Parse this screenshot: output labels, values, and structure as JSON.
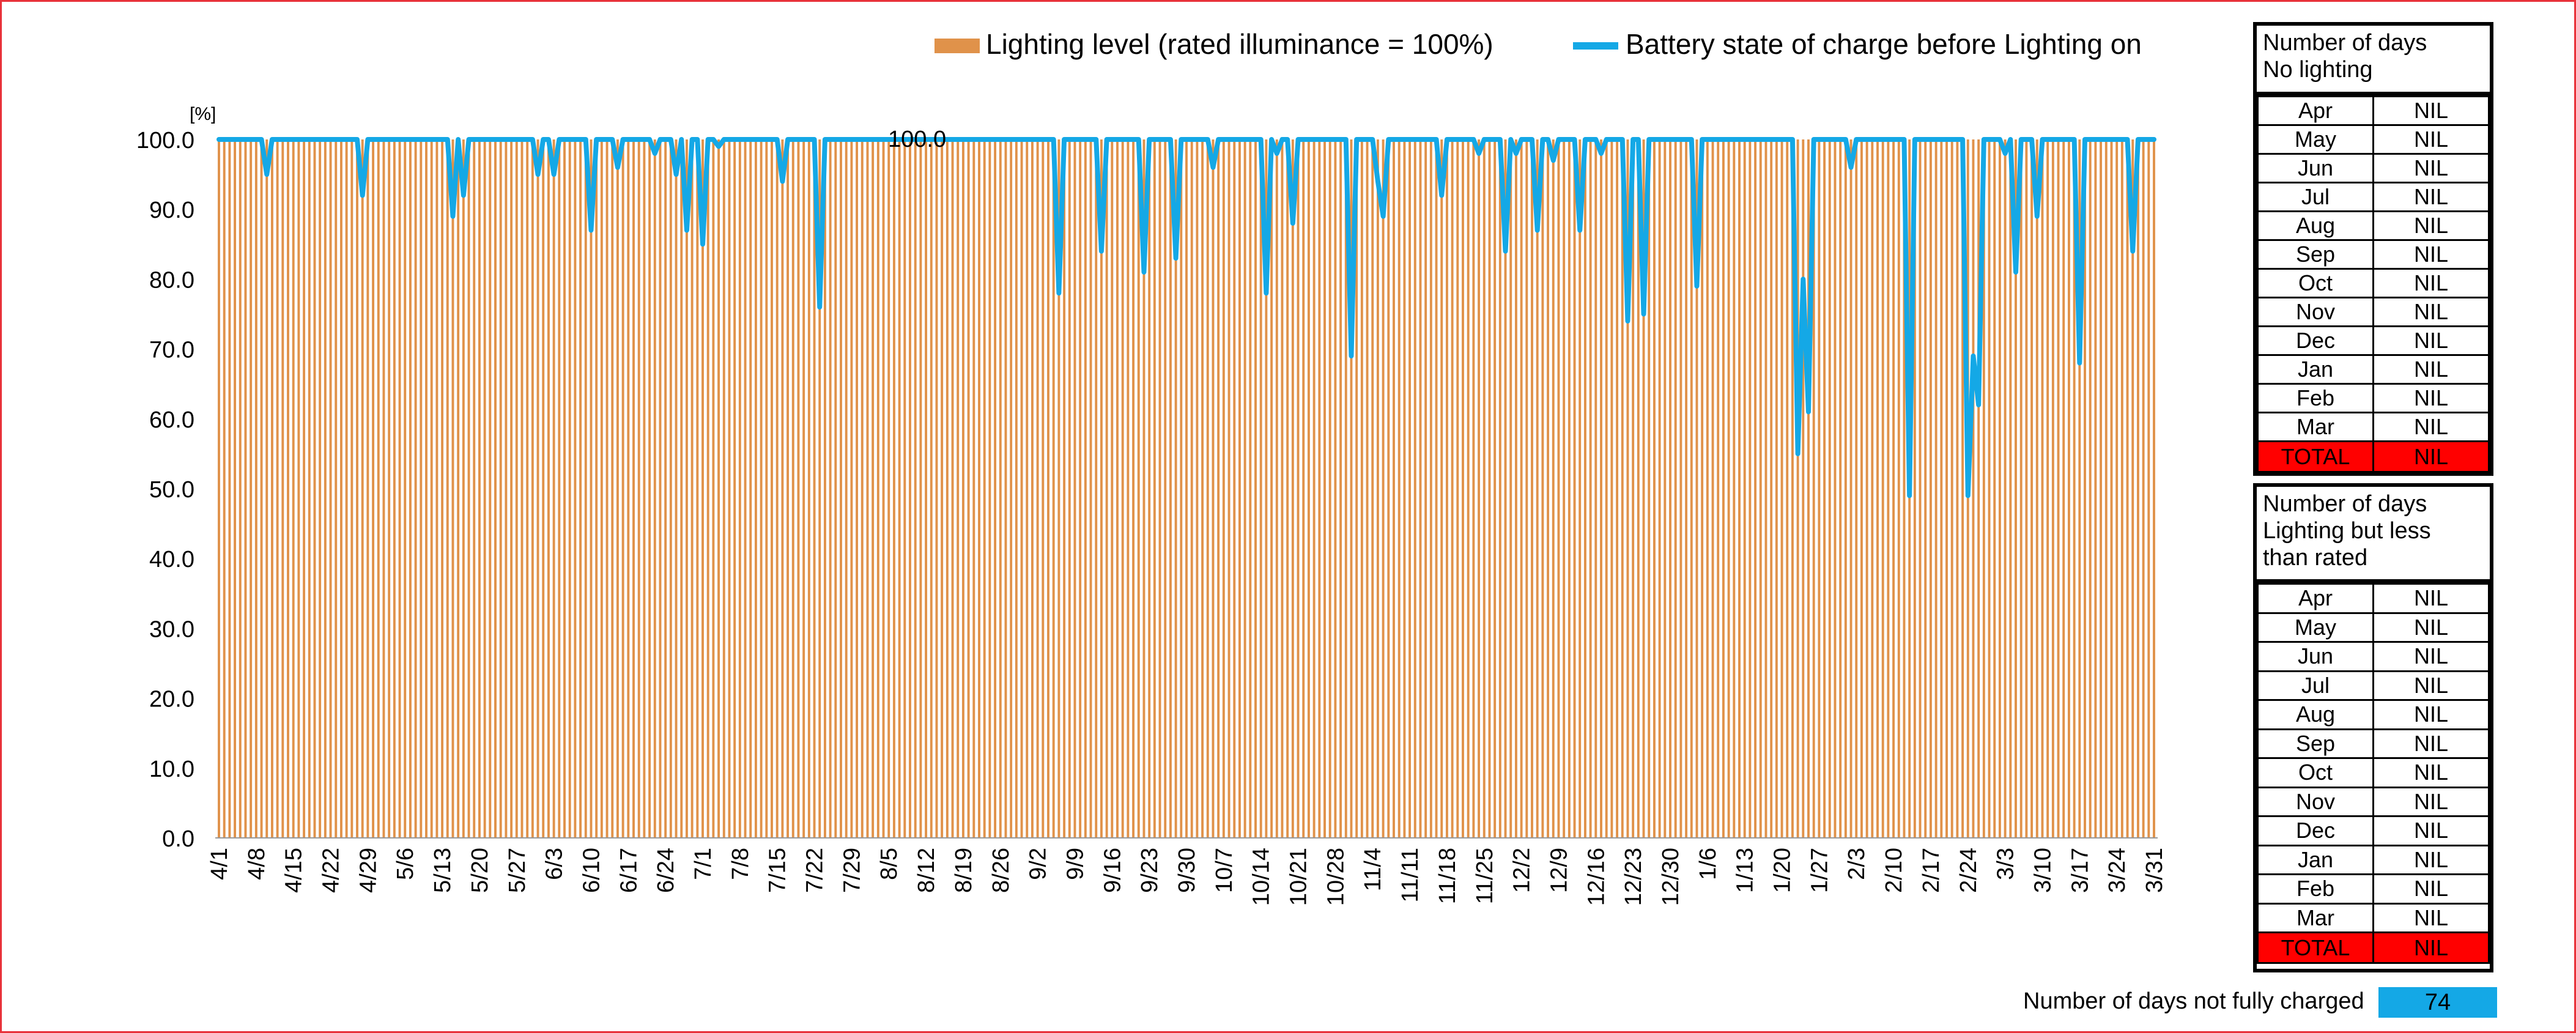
{
  "legend": {
    "lighting_label": "Lighting level (rated illuminance = 100%)",
    "battery_label": "Battery state of charge before Lighting on"
  },
  "colors": {
    "lighting": "#E0924A",
    "battery": "#14A8E6",
    "total_row": "#FF0000",
    "frame": "#E8323A"
  },
  "no_lighting_table": {
    "header_line1": "Number of days",
    "header_line2": "No lighting",
    "rows": [
      {
        "month": "Apr",
        "value": "NIL"
      },
      {
        "month": "May",
        "value": "NIL"
      },
      {
        "month": "Jun",
        "value": "NIL"
      },
      {
        "month": "Jul",
        "value": "NIL"
      },
      {
        "month": "Aug",
        "value": "NIL"
      },
      {
        "month": "Sep",
        "value": "NIL"
      },
      {
        "month": "Oct",
        "value": "NIL"
      },
      {
        "month": "Nov",
        "value": "NIL"
      },
      {
        "month": "Dec",
        "value": "NIL"
      },
      {
        "month": "Jan",
        "value": "NIL"
      },
      {
        "month": "Feb",
        "value": "NIL"
      },
      {
        "month": "Mar",
        "value": "NIL"
      }
    ],
    "total_label": "TOTAL",
    "total_value": "NIL"
  },
  "less_than_rated_table": {
    "header_line1": "Number of days",
    "header_line2": "Lighting but less",
    "header_line3": "than rated",
    "rows": [
      {
        "month": "Apr",
        "value": "NIL"
      },
      {
        "month": "May",
        "value": "NIL"
      },
      {
        "month": "Jun",
        "value": "NIL"
      },
      {
        "month": "Jul",
        "value": "NIL"
      },
      {
        "month": "Aug",
        "value": "NIL"
      },
      {
        "month": "Sep",
        "value": "NIL"
      },
      {
        "month": "Oct",
        "value": "NIL"
      },
      {
        "month": "Nov",
        "value": "NIL"
      },
      {
        "month": "Dec",
        "value": "NIL"
      },
      {
        "month": "Jan",
        "value": "NIL"
      },
      {
        "month": "Feb",
        "value": "NIL"
      },
      {
        "month": "Mar",
        "value": "NIL"
      }
    ],
    "total_label": "TOTAL",
    "total_value": "NIL"
  },
  "footer": {
    "label": "Number of days not fully charged",
    "value": "74"
  },
  "chart_data": {
    "type": "bar",
    "unit_label": "[%]",
    "ylim": [
      0,
      100
    ],
    "y_ticks": [
      "0.0",
      "10.0",
      "20.0",
      "30.0",
      "40.0",
      "50.0",
      "60.0",
      "70.0",
      "80.0",
      "90.0",
      "100.0"
    ],
    "x_start_date": "4/1",
    "x_tick_every_days": 7,
    "x_tick_labels": [
      "4/1",
      "4/8",
      "4/15",
      "4/22",
      "4/29",
      "5/6",
      "5/13",
      "5/20",
      "5/27",
      "6/3",
      "6/10",
      "6/17",
      "6/24",
      "7/1",
      "7/8",
      "7/15",
      "7/22",
      "7/29",
      "8/5",
      "8/12",
      "8/19",
      "8/26",
      "9/2",
      "9/9",
      "9/16",
      "9/23",
      "9/30",
      "10/7",
      "10/14",
      "10/21",
      "10/28",
      "11/4",
      "11/11",
      "11/18",
      "11/25",
      "12/2",
      "12/9",
      "12/16",
      "12/23",
      "12/30",
      "1/6",
      "1/13",
      "1/20",
      "1/27",
      "2/3",
      "2/10",
      "2/17",
      "2/24",
      "3/3",
      "3/10",
      "3/17",
      "3/24",
      "3/31"
    ],
    "data_label": "100.0",
    "series": [
      {
        "name": "Lighting level (rated illuminance = 100%)",
        "kind": "bar",
        "constant_value": 100.0
      },
      {
        "name": "Battery state of charge before Lighting on",
        "kind": "line",
        "baseline": 100.0,
        "dips": [
          {
            "date": "4/10",
            "value": 95
          },
          {
            "date": "4/28",
            "value": 92
          },
          {
            "date": "5/15",
            "value": 89
          },
          {
            "date": "5/17",
            "value": 92
          },
          {
            "date": "5/31",
            "value": 95
          },
          {
            "date": "6/3",
            "value": 95
          },
          {
            "date": "6/10",
            "value": 87
          },
          {
            "date": "6/15",
            "value": 96
          },
          {
            "date": "6/22",
            "value": 98
          },
          {
            "date": "6/26",
            "value": 95
          },
          {
            "date": "6/28",
            "value": 87
          },
          {
            "date": "7/1",
            "value": 85
          },
          {
            "date": "7/4",
            "value": 99
          },
          {
            "date": "7/16",
            "value": 94
          },
          {
            "date": "7/23",
            "value": 76
          },
          {
            "date": "9/6",
            "value": 78
          },
          {
            "date": "9/14",
            "value": 84
          },
          {
            "date": "9/22",
            "value": 81
          },
          {
            "date": "9/28",
            "value": 83
          },
          {
            "date": "10/5",
            "value": 96
          },
          {
            "date": "10/15",
            "value": 78
          },
          {
            "date": "10/17",
            "value": 98
          },
          {
            "date": "10/20",
            "value": 88
          },
          {
            "date": "10/31",
            "value": 69
          },
          {
            "date": "11/5",
            "value": 94
          },
          {
            "date": "11/6",
            "value": 89
          },
          {
            "date": "11/17",
            "value": 92
          },
          {
            "date": "11/24",
            "value": 98
          },
          {
            "date": "11/29",
            "value": 84
          },
          {
            "date": "12/1",
            "value": 98
          },
          {
            "date": "12/5",
            "value": 87
          },
          {
            "date": "12/8",
            "value": 97
          },
          {
            "date": "12/13",
            "value": 87
          },
          {
            "date": "12/17",
            "value": 98
          },
          {
            "date": "12/22",
            "value": 74
          },
          {
            "date": "12/25",
            "value": 75
          },
          {
            "date": "1/4",
            "value": 79
          },
          {
            "date": "1/23",
            "value": 55
          },
          {
            "date": "1/24",
            "value": 80
          },
          {
            "date": "1/25",
            "value": 61
          },
          {
            "date": "2/2",
            "value": 96
          },
          {
            "date": "2/13",
            "value": 49
          },
          {
            "date": "2/24",
            "value": 49
          },
          {
            "date": "2/25",
            "value": 69
          },
          {
            "date": "2/26",
            "value": 62
          },
          {
            "date": "3/3",
            "value": 98
          },
          {
            "date": "3/5",
            "value": 81
          },
          {
            "date": "3/9",
            "value": 89
          },
          {
            "date": "3/17",
            "value": 68
          },
          {
            "date": "3/27",
            "value": 84
          }
        ]
      }
    ]
  }
}
